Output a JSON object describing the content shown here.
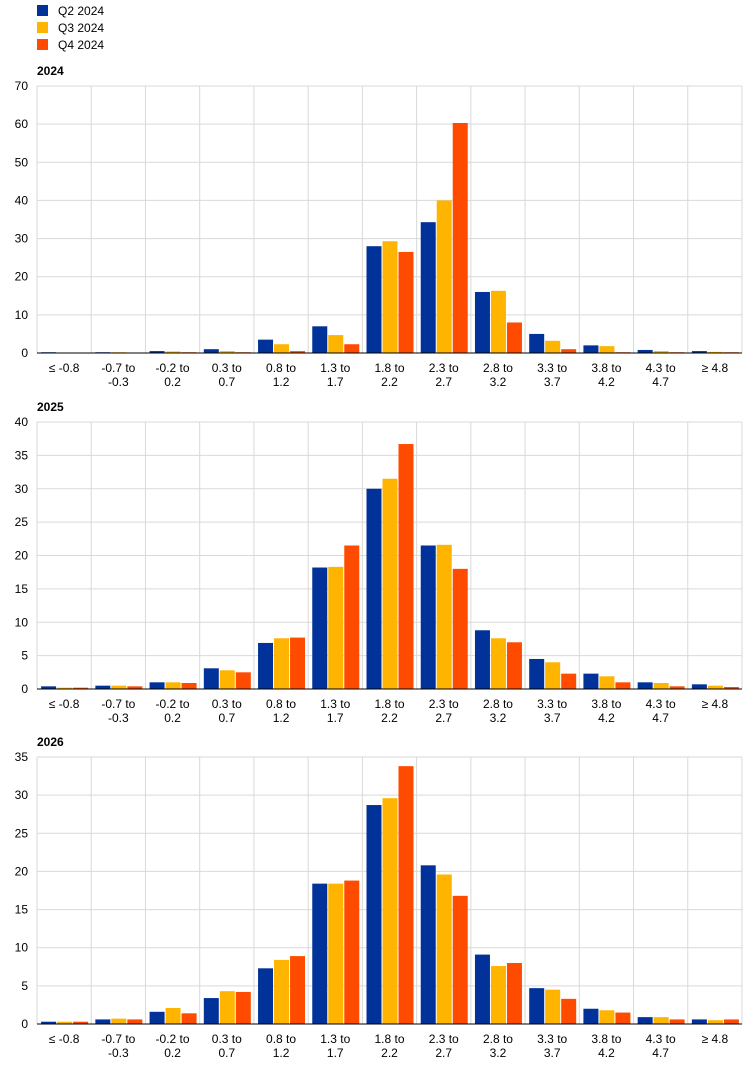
{
  "series_colors": [
    "#003299",
    "#FFB400",
    "#FF4B00"
  ],
  "legend": [
    "Q2 2024",
    "Q3 2024",
    "Q4 2024"
  ],
  "chart_data": [
    {
      "type": "bar",
      "title": "2024",
      "ylim": [
        0,
        70
      ],
      "yticks": [
        0,
        10,
        20,
        30,
        40,
        50,
        60,
        70
      ],
      "categories": [
        "≤ -0.8",
        "-0.7 to -0.3",
        "-0.2 to 0.2",
        "0.3 to 0.7",
        "0.8 to 1.2",
        "1.3 to 1.7",
        "1.8 to 2.2",
        "2.3 to 2.7",
        "2.8 to 3.2",
        "3.3 to 3.7",
        "3.8 to 4.2",
        "4.3 to 4.7",
        "≥ 4.8"
      ],
      "category_lines": [
        [
          "≤ -0.8"
        ],
        [
          "-0.7 to",
          "-0.3"
        ],
        [
          "-0.2 to",
          "0.2"
        ],
        [
          "0.3 to",
          "0.7"
        ],
        [
          "0.8 to",
          "1.2"
        ],
        [
          "1.3 to",
          "1.7"
        ],
        [
          "1.8 to",
          "2.2"
        ],
        [
          "2.3 to",
          "2.7"
        ],
        [
          "2.8 to",
          "3.2"
        ],
        [
          "3.3 to",
          "3.7"
        ],
        [
          "3.8 to",
          "4.2"
        ],
        [
          "4.3 to",
          "4.7"
        ],
        [
          "≥ 4.8"
        ]
      ],
      "series": [
        {
          "name": "Q2 2024",
          "values": [
            0.2,
            0.2,
            0.5,
            1.0,
            3.5,
            7.0,
            28.0,
            34.3,
            16.0,
            5.0,
            2.0,
            0.8,
            0.5
          ]
        },
        {
          "name": "Q3 2024",
          "values": [
            0.1,
            0.2,
            0.4,
            0.5,
            2.3,
            4.7,
            29.3,
            40.0,
            16.3,
            3.2,
            1.8,
            0.5,
            0.3
          ]
        },
        {
          "name": "Q4 2024",
          "values": [
            0.1,
            0.1,
            0.2,
            0.2,
            0.5,
            2.3,
            26.5,
            60.3,
            8.0,
            1.0,
            0.2,
            0.2,
            0.2
          ]
        }
      ],
      "grid": true
    },
    {
      "type": "bar",
      "title": "2025",
      "ylim": [
        0,
        40
      ],
      "yticks": [
        0,
        5,
        10,
        15,
        20,
        25,
        30,
        35,
        40
      ],
      "categories": [
        "≤ -0.8",
        "-0.7 to -0.3",
        "-0.2 to 0.2",
        "0.3 to 0.7",
        "0.8 to 1.2",
        "1.3 to 1.7",
        "1.8 to 2.2",
        "2.3 to 2.7",
        "2.8 to 3.2",
        "3.3 to 3.7",
        "3.8 to 4.2",
        "4.3 to 4.7",
        "≥ 4.8"
      ],
      "category_lines": [
        [
          "≤ -0.8"
        ],
        [
          "-0.7 to",
          "-0.3"
        ],
        [
          "-0.2 to",
          "0.2"
        ],
        [
          "0.3 to",
          "0.7"
        ],
        [
          "0.8 to",
          "1.2"
        ],
        [
          "1.3 to",
          "1.7"
        ],
        [
          "1.8 to",
          "2.2"
        ],
        [
          "2.3 to",
          "2.7"
        ],
        [
          "2.8 to",
          "3.2"
        ],
        [
          "3.3 to",
          "3.7"
        ],
        [
          "3.8 to",
          "4.2"
        ],
        [
          "4.3 to",
          "4.7"
        ],
        [
          "≥ 4.8"
        ]
      ],
      "series": [
        {
          "name": "Q2 2024",
          "values": [
            0.4,
            0.5,
            1.0,
            3.1,
            6.9,
            18.2,
            30.0,
            21.5,
            8.8,
            4.5,
            2.3,
            1.0,
            0.7
          ]
        },
        {
          "name": "Q3 2024",
          "values": [
            0.2,
            0.5,
            1.0,
            2.8,
            7.6,
            18.3,
            31.5,
            21.6,
            7.6,
            4.0,
            1.9,
            0.9,
            0.5
          ]
        },
        {
          "name": "Q4 2024",
          "values": [
            0.2,
            0.4,
            0.9,
            2.5,
            7.7,
            21.5,
            36.7,
            18.0,
            7.0,
            2.3,
            1.0,
            0.4,
            0.3
          ]
        }
      ],
      "grid": true
    },
    {
      "type": "bar",
      "title": "2026",
      "ylim": [
        0,
        35
      ],
      "yticks": [
        0,
        5,
        10,
        15,
        20,
        25,
        30,
        35
      ],
      "categories": [
        "≤ -0.8",
        "-0.7 to -0.3",
        "-0.2 to 0.2",
        "0.3 to 0.7",
        "0.8 to 1.2",
        "1.3 to 1.7",
        "1.8 to 2.2",
        "2.3 to 2.7",
        "2.8 to 3.2",
        "3.3 to 3.7",
        "3.8 to 4.2",
        "4.3 to 4.7",
        "≥ 4.8"
      ],
      "category_lines": [
        [
          "≤ -0.8"
        ],
        [
          "-0.7 to",
          "-0.3"
        ],
        [
          "-0.2 to",
          "0.2"
        ],
        [
          "0.3 to",
          "0.7"
        ],
        [
          "0.8 to",
          "1.2"
        ],
        [
          "1.3 to",
          "1.7"
        ],
        [
          "1.8 to",
          "2.2"
        ],
        [
          "2.3 to",
          "2.7"
        ],
        [
          "2.8 to",
          "3.2"
        ],
        [
          "3.3 to",
          "3.7"
        ],
        [
          "3.8 to",
          "4.2"
        ],
        [
          "4.3 to",
          "4.7"
        ],
        [
          "≥ 4.8"
        ]
      ],
      "series": [
        {
          "name": "Q2 2024",
          "values": [
            0.3,
            0.6,
            1.6,
            3.4,
            7.3,
            18.4,
            28.7,
            20.8,
            9.1,
            4.7,
            2.0,
            0.9,
            0.6
          ]
        },
        {
          "name": "Q3 2024",
          "values": [
            0.3,
            0.7,
            2.1,
            4.3,
            8.4,
            18.4,
            29.6,
            19.6,
            7.6,
            4.5,
            1.8,
            0.9,
            0.5
          ]
        },
        {
          "name": "Q4 2024",
          "values": [
            0.3,
            0.6,
            1.4,
            4.2,
            8.9,
            18.8,
            33.8,
            16.8,
            8.0,
            3.3,
            1.5,
            0.6,
            0.6
          ]
        }
      ],
      "grid": true
    }
  ]
}
